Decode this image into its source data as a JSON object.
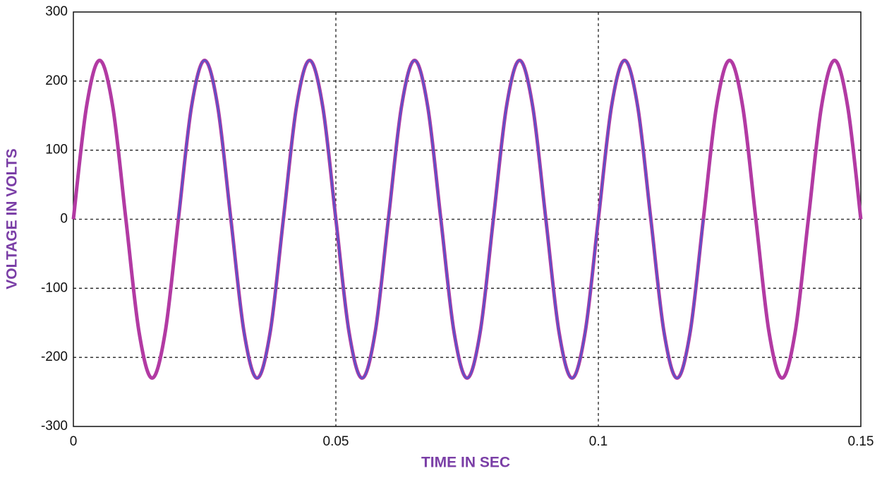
{
  "chart_data": {
    "type": "line",
    "xlabel": "TIME IN SEC",
    "ylabel": "VOLTAGE IN VOLTS",
    "x": [
      0,
      0.0025,
      0.005,
      0.0075,
      0.01,
      0.0125,
      0.015,
      0.0175,
      0.02,
      0.0225,
      0.025,
      0.0275,
      0.03,
      0.0325,
      0.035,
      0.0375,
      0.04,
      0.0425,
      0.045,
      0.0475,
      0.05,
      0.0525,
      0.055,
      0.0575,
      0.06,
      0.0625,
      0.065,
      0.0675,
      0.07,
      0.0725,
      0.075,
      0.0775,
      0.08,
      0.0825,
      0.085,
      0.0875,
      0.09,
      0.0925,
      0.095,
      0.0975,
      0.1,
      0.1025,
      0.105,
      0.1075,
      0.11,
      0.1125,
      0.115,
      0.1175,
      0.12,
      0.1225,
      0.125,
      0.1275,
      0.13,
      0.1325,
      0.135,
      0.1375,
      0.14,
      0.1425,
      0.145,
      0.1475,
      0.15
    ],
    "series": [
      {
        "color": "#b23aa3",
        "values": [
          0,
          163,
          230,
          163,
          0,
          -163,
          -230,
          -163,
          0,
          163,
          230,
          163,
          0,
          -163,
          -230,
          -163,
          0,
          163,
          230,
          163,
          0,
          -163,
          -230,
          -163,
          0,
          163,
          230,
          163,
          0,
          -163,
          -230,
          -163,
          0,
          163,
          230,
          163,
          0,
          -163,
          -230,
          -163,
          0,
          163,
          230,
          163,
          0,
          -163,
          -230,
          -163,
          0,
          163,
          230,
          163,
          0,
          -163,
          -230,
          -163,
          0,
          163,
          230,
          163,
          0
        ]
      },
      {
        "color": "#5b52c8",
        "values": [
          null,
          null,
          null,
          null,
          null,
          null,
          null,
          null,
          0,
          163,
          230,
          163,
          0,
          -163,
          -230,
          -163,
          0,
          163,
          230,
          163,
          0,
          -163,
          -230,
          -163,
          0,
          163,
          230,
          163,
          0,
          -163,
          -230,
          -163,
          0,
          163,
          230,
          163,
          0,
          -163,
          -230,
          -163,
          0,
          163,
          230,
          163,
          0,
          -163,
          -230,
          -163,
          0,
          null,
          null,
          null,
          null,
          null,
          null,
          null,
          null,
          null,
          null,
          null,
          null
        ]
      }
    ],
    "xlim": [
      0,
      0.15
    ],
    "xticks": [
      0,
      0.05,
      0.1,
      0.15
    ],
    "ylim": [
      -300,
      300
    ],
    "yticks": [
      -300,
      -200,
      -100,
      0,
      100,
      200,
      300
    ],
    "grid": true
  }
}
